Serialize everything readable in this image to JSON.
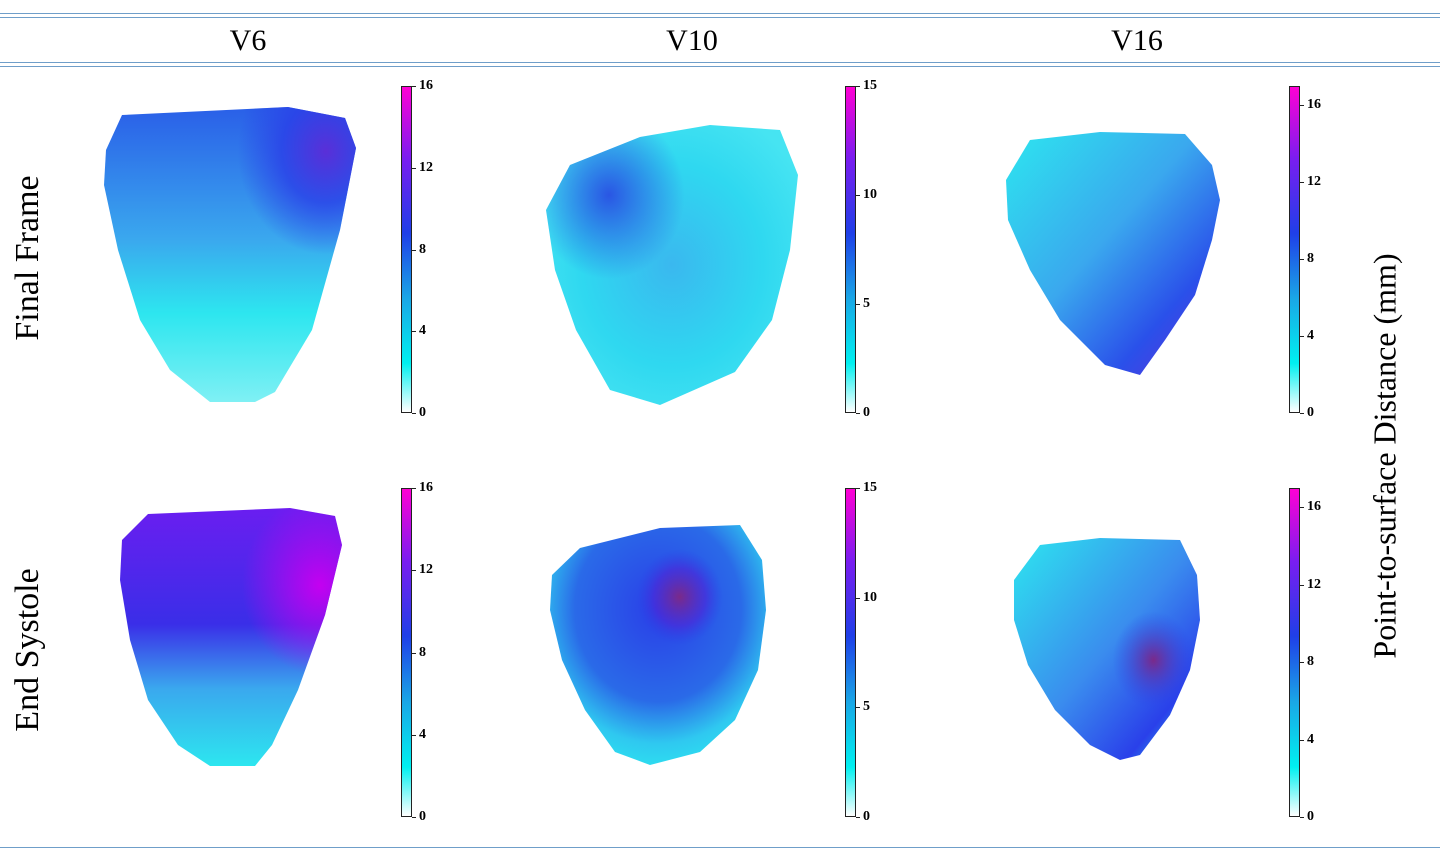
{
  "columns": [
    "V6",
    "V10",
    "V16"
  ],
  "rows": [
    "Final Frame",
    "End Systole"
  ],
  "colorbar_label": "Point-to-surface Distance (mm)",
  "colorbars": [
    {
      "max": 16,
      "ticks": [
        "16",
        "12",
        "8",
        "4",
        "0"
      ]
    },
    {
      "max": 15,
      "ticks": [
        "15",
        "10",
        "5",
        "0"
      ]
    },
    {
      "max": 17,
      "ticks": [
        "16",
        "12",
        "8",
        "4",
        "0"
      ]
    },
    {
      "max": 16,
      "ticks": [
        "16",
        "12",
        "8",
        "4",
        "0"
      ]
    },
    {
      "max": 15,
      "ticks": [
        "15",
        "10",
        "5",
        "0"
      ]
    },
    {
      "max": 17,
      "ticks": [
        "16",
        "12",
        "8",
        "4",
        "0"
      ]
    }
  ],
  "colors": {
    "cyan": "#2de6ef",
    "light_blue": "#3aa8ee",
    "blue": "#2a4fea",
    "violet": "#6a1ef0",
    "magenta": "#ff00d4",
    "rule": "#6f9ec9"
  }
}
